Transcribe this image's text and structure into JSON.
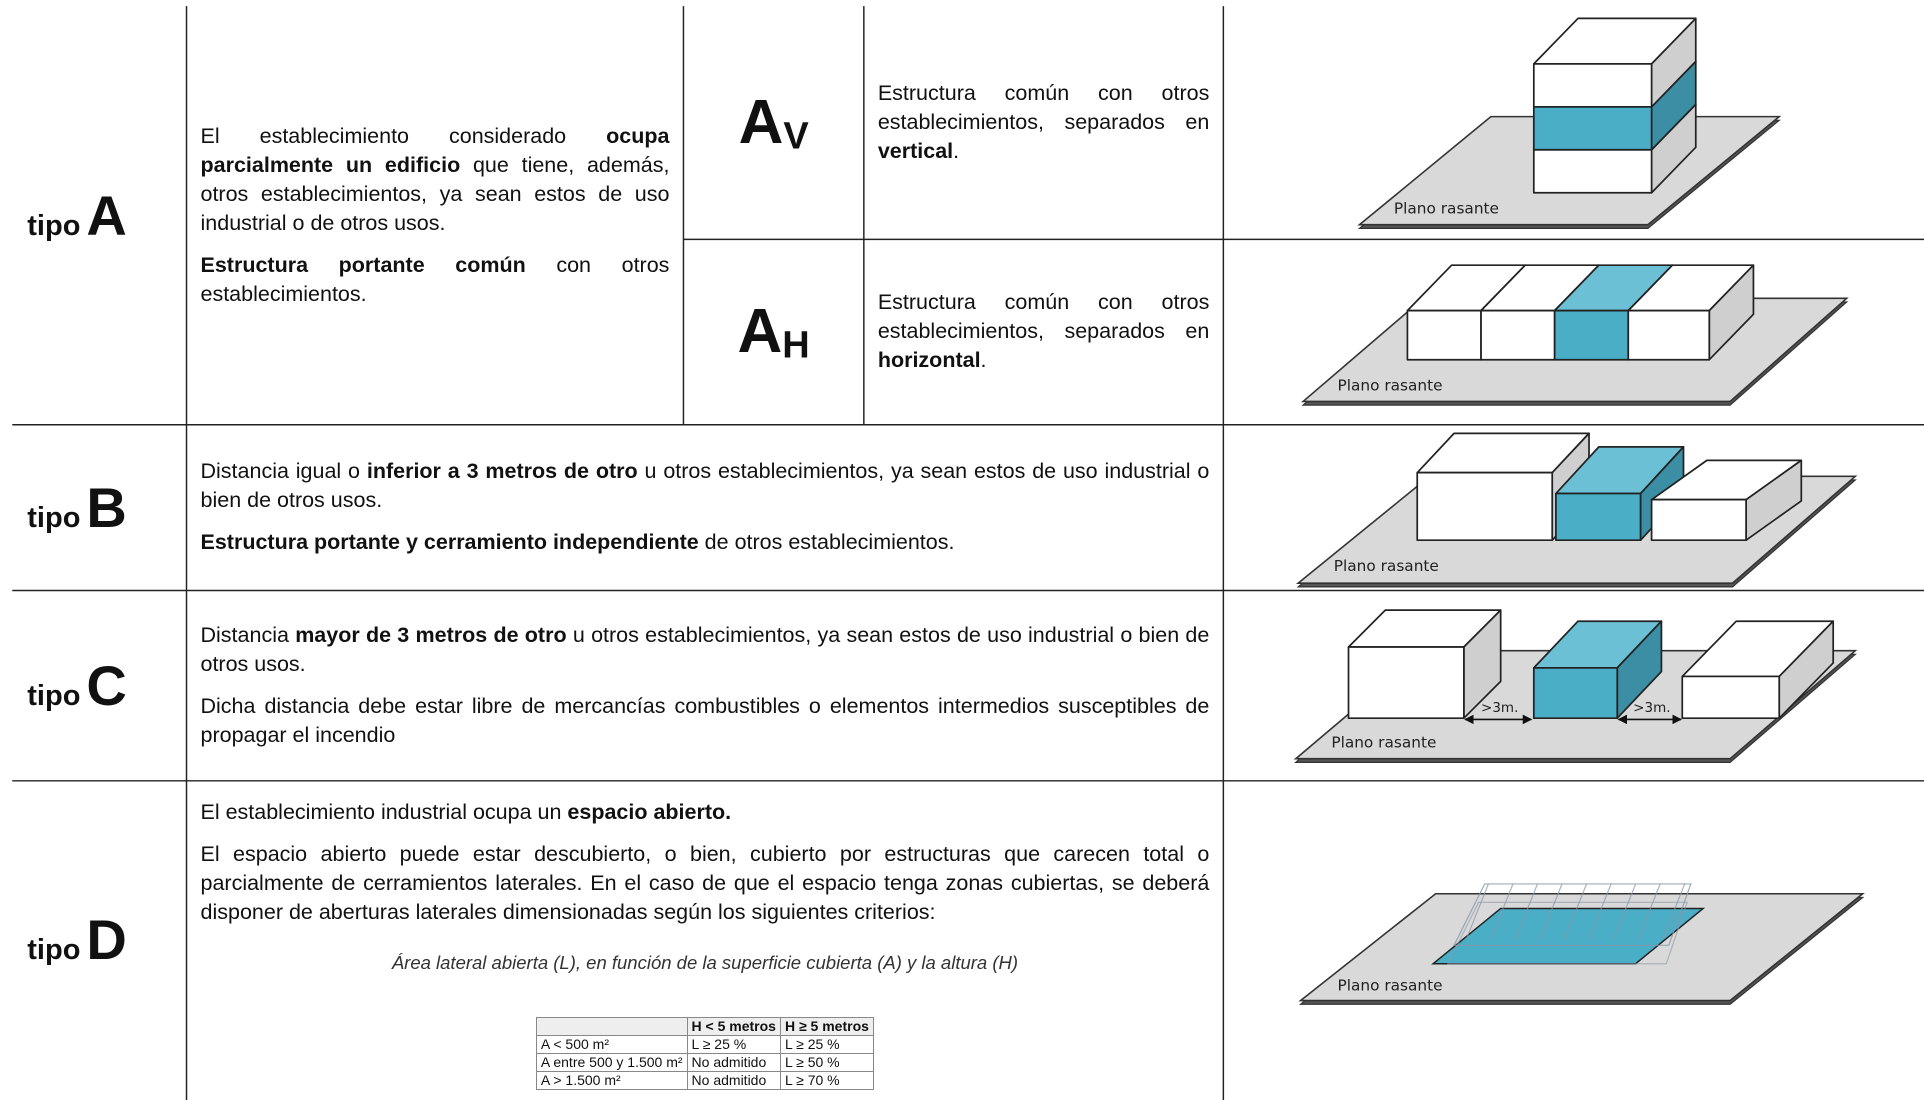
{
  "rows": [
    {
      "prefix": "tipo",
      "letter": "A",
      "paragraphs": [
        [
          {
            "t": "El establecimiento considerado "
          },
          {
            "t": "ocupa parcialmente un edificio",
            "b": true
          },
          {
            "t": " que tiene, además, otros establecimientos, ya sean estos de uso industrial o de otros usos."
          }
        ],
        [
          {
            "t": "Estructura portante común",
            "b": true
          },
          {
            "t": " con otros establecimientos."
          }
        ]
      ],
      "subtypes": [
        {
          "symbol": "A",
          "subscript": "V",
          "paragraphs": [
            [
              {
                "t": "Estructura común con otros establecimientos, separados en "
              },
              {
                "t": "vertical",
                "b": true
              },
              {
                "t": "."
              }
            ]
          ],
          "image_label": "Plano rasante"
        },
        {
          "symbol": "A",
          "subscript": "H",
          "paragraphs": [
            [
              {
                "t": "Estructura común con otros establecimientos, separados en "
              },
              {
                "t": "horizontal",
                "b": true
              },
              {
                "t": "."
              }
            ]
          ],
          "image_label": "Plano rasante"
        }
      ]
    },
    {
      "prefix": "tipo",
      "letter": "B",
      "paragraphs": [
        [
          {
            "t": "Distancia igual o "
          },
          {
            "t": "inferior a 3 metros de otro",
            "b": true
          },
          {
            "t": " u otros establecimientos, ya sean estos de uso industrial o bien de otros usos."
          }
        ],
        [
          {
            "t": "Estructura portante y cerramiento independiente",
            "b": true
          },
          {
            "t": " de otros establecimientos."
          }
        ]
      ],
      "image_label": "Plano rasante"
    },
    {
      "prefix": "tipo",
      "letter": "C",
      "paragraphs": [
        [
          {
            "t": "Distancia "
          },
          {
            "t": "mayor de 3 metros de otro",
            "b": true
          },
          {
            "t": " u otros establecimientos, ya sean estos de uso industrial o bien de otros usos."
          }
        ],
        [
          {
            "t": "Dicha distancia debe estar libre de mercancías combustibles o elementos intermedios susceptibles de propagar el incendio"
          }
        ]
      ],
      "image_label": "Plano rasante",
      "distance_labels": [
        ">3m.",
        ">3m."
      ]
    },
    {
      "prefix": "tipo",
      "letter": "D",
      "paragraphs": [
        [
          {
            "t": "El establecimiento industrial ocupa un "
          },
          {
            "t": "espacio abierto.",
            "b": true
          }
        ],
        [
          {
            "t": "El espacio abierto puede estar descubierto, o bien, cubierto por estructuras que carecen total o parcialmente de cerramientos laterales. En el caso de que el espacio tenga zonas cubiertas, se deberá disponer de aberturas laterales dimensionadas según los siguientes criterios:"
          }
        ]
      ],
      "caption": "Área lateral abierta (L), en función de la superficie cubierta (A) y la altura (H)",
      "table": [
        [
          null,
          "H < 5 metros",
          "H ≥ 5 metros"
        ],
        [
          "A < 500 m²",
          "L ≥ 25 %",
          "L ≥ 25 %"
        ],
        [
          "A entre 500 y 1.500 m²",
          "No admitido",
          "L ≥ 50 %"
        ],
        [
          "A > 1.500 m²",
          "No admitido",
          "L ≥ 70 %"
        ]
      ],
      "image_label": "Plano rasante"
    }
  ]
}
